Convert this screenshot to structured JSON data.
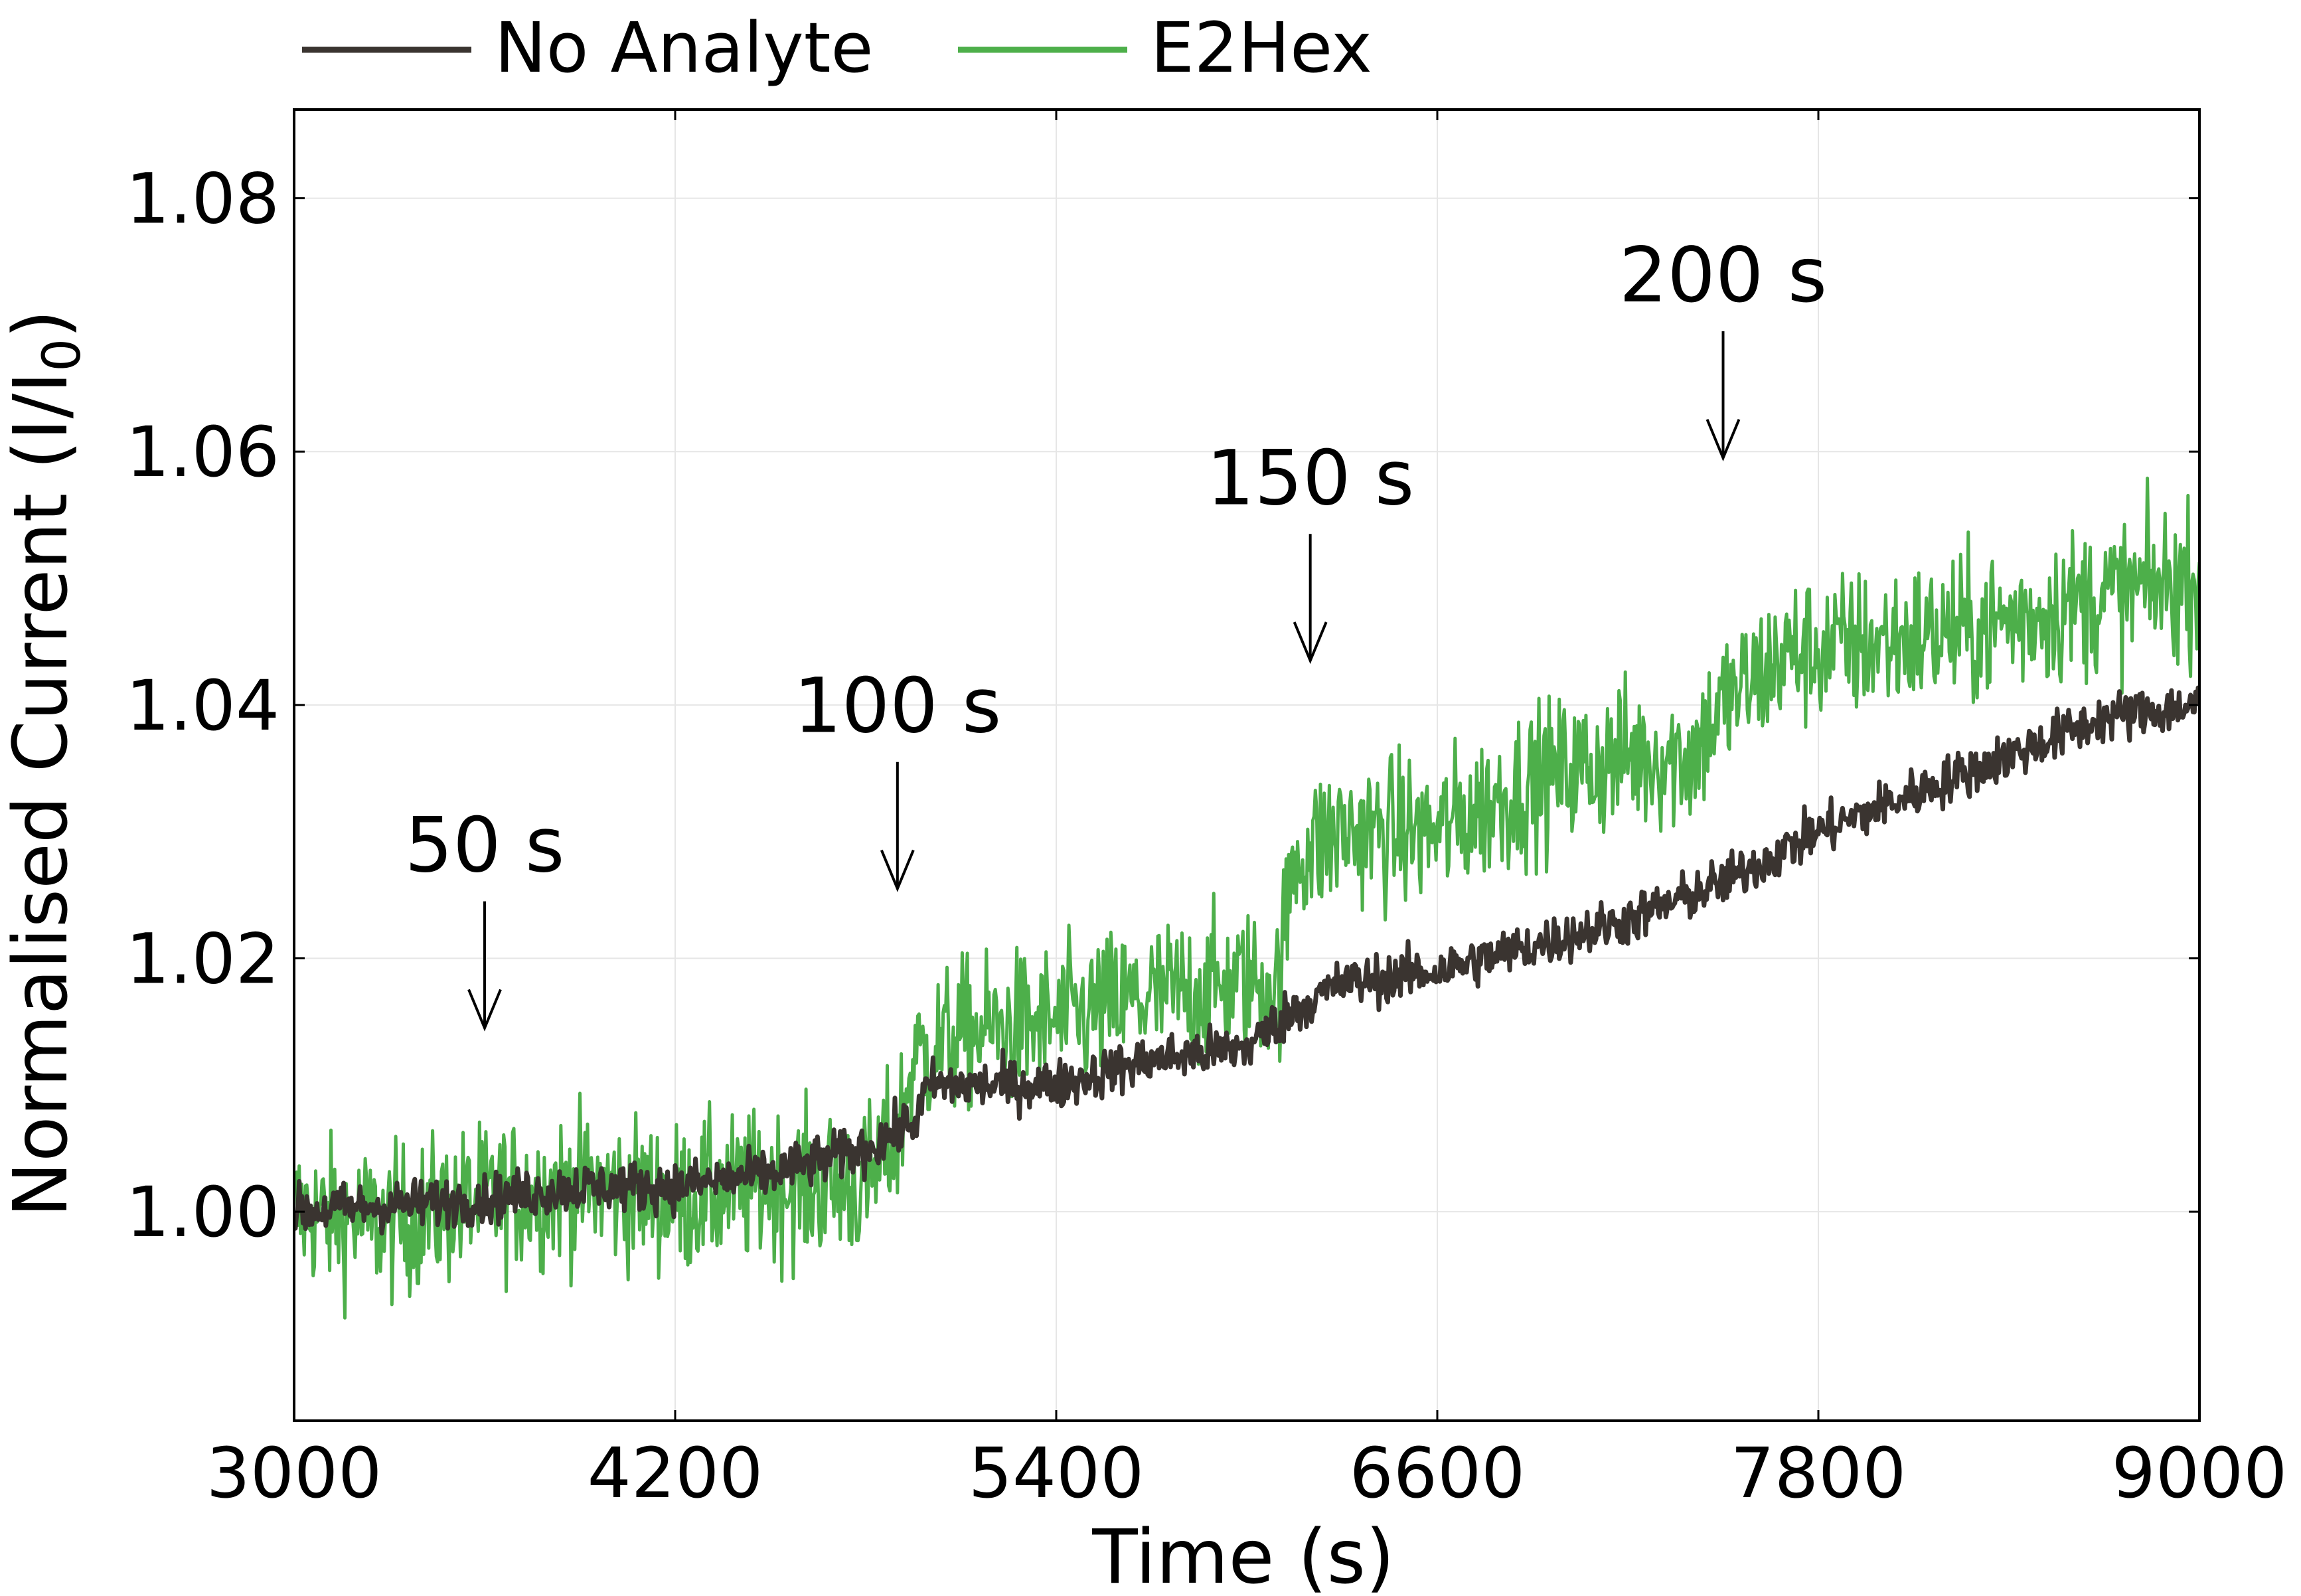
{
  "chart_data": {
    "type": "line",
    "xlabel": "Time (s)",
    "ylabel_main": "Normalised Current (I/I",
    "ylabel_sub": "0",
    "ylabel_tail": ")",
    "xlim": [
      3000,
      9000
    ],
    "ylim": [
      0.9835,
      1.087
    ],
    "xticks": [
      3000,
      4200,
      5400,
      6600,
      7800,
      9000
    ],
    "xtick_labels": [
      "3000",
      "4200",
      "5400",
      "6600",
      "7800",
      "9000"
    ],
    "yticks": [
      1.0,
      1.02,
      1.04,
      1.06,
      1.08
    ],
    "ytick_labels": [
      "1.00",
      "1.02",
      "1.04",
      "1.06",
      "1.08"
    ],
    "grid": true,
    "legend_position": "top",
    "series": [
      {
        "name": "No Analyte",
        "color": "#3a3430",
        "noise": 0.0018,
        "x": [
          3000,
          3300,
          3600,
          3900,
          4200,
          4500,
          4800,
          4950,
          5000,
          5100,
          5400,
          5700,
          6000,
          6150,
          6300,
          6600,
          6900,
          7200,
          7500,
          7800,
          8100,
          8400,
          8700,
          9000
        ],
        "y": [
          1.0,
          1.0005,
          1.001,
          1.002,
          1.002,
          1.003,
          1.005,
          1.007,
          1.01,
          1.01,
          1.01,
          1.012,
          1.013,
          1.016,
          1.018,
          1.019,
          1.021,
          1.023,
          1.026,
          1.03,
          1.033,
          1.036,
          1.039,
          1.04
        ]
      },
      {
        "name": "E2Hex",
        "color": "#4daf4a",
        "noise": 0.0055,
        "x": [
          3000,
          3300,
          3600,
          3900,
          4200,
          4500,
          4800,
          4900,
          4950,
          5100,
          5400,
          5700,
          6000,
          6100,
          6150,
          6300,
          6600,
          6900,
          7200,
          7400,
          7500,
          7700,
          8000,
          8300,
          8600,
          9000
        ],
        "y": [
          1.0,
          0.999,
          1.001,
          1.002,
          1.001,
          1.002,
          1.002,
          1.006,
          1.012,
          1.014,
          1.015,
          1.017,
          1.018,
          1.018,
          1.028,
          1.03,
          1.03,
          1.034,
          1.036,
          1.036,
          1.04,
          1.044,
          1.045,
          1.046,
          1.048,
          1.05
        ]
      }
    ],
    "annotations": [
      {
        "text": "50 s",
        "x": 3600,
        "y_tip": 1.0145,
        "y_tail": 1.0245
      },
      {
        "text": "100 s",
        "x": 4900,
        "y_tip": 1.0255,
        "y_tail": 1.0355
      },
      {
        "text": "150 s",
        "x": 6200,
        "y_tip": 1.0435,
        "y_tail": 1.0535
      },
      {
        "text": "200 s",
        "x": 7500,
        "y_tip": 1.0595,
        "y_tail": 1.0695
      }
    ]
  }
}
